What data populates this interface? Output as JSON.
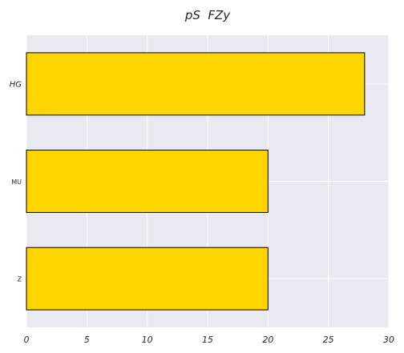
{
  "chart_data": {
    "type": "bar",
    "orientation": "horizontal",
    "title": "pS  FZy",
    "xlabel": "",
    "ylabel": "",
    "categories": [
      "HG",
      "MU",
      "Z"
    ],
    "values": [
      28,
      20,
      20
    ],
    "xlim": [
      0,
      30
    ],
    "xticks": [
      0,
      5,
      10,
      15,
      20,
      25,
      30
    ],
    "grid": true,
    "legend": "none",
    "colors": {
      "bar": "#FFD500",
      "bar_edge": "#000000",
      "plot_bg": "#E9E9F1",
      "grid": "#FFFFFF"
    }
  }
}
